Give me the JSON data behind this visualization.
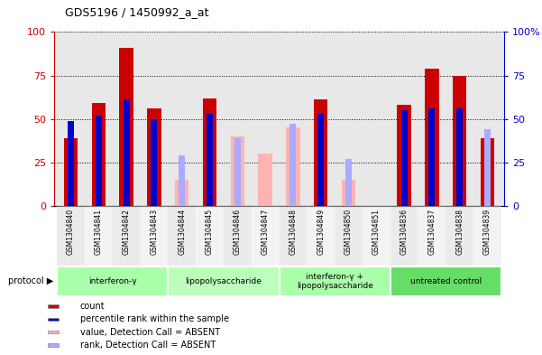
{
  "title": "GDS5196 / 1450992_a_at",
  "samples": [
    "GSM1304840",
    "GSM1304841",
    "GSM1304842",
    "GSM1304843",
    "GSM1304844",
    "GSM1304845",
    "GSM1304846",
    "GSM1304847",
    "GSM1304848",
    "GSM1304849",
    "GSM1304850",
    "GSM1304851",
    "GSM1304836",
    "GSM1304837",
    "GSM1304838",
    "GSM1304839"
  ],
  "count_values": [
    39,
    59,
    91,
    56,
    null,
    62,
    null,
    null,
    null,
    61,
    null,
    null,
    58,
    79,
    75,
    39
  ],
  "count_absent_values": [
    null,
    null,
    null,
    null,
    15,
    null,
    40,
    30,
    45,
    null,
    15,
    null,
    null,
    null,
    null,
    null
  ],
  "rank_values": [
    49,
    52,
    61,
    50,
    null,
    53,
    null,
    null,
    null,
    53,
    null,
    null,
    55,
    56,
    56,
    null
  ],
  "rank_absent_values": [
    null,
    null,
    null,
    null,
    29,
    null,
    39,
    null,
    47,
    null,
    27,
    null,
    null,
    null,
    null,
    44
  ],
  "protocols": [
    {
      "label": "interferon-γ",
      "start": 0,
      "end": 4,
      "color": "#aaffaa"
    },
    {
      "label": "lipopolysaccharide",
      "start": 4,
      "end": 8,
      "color": "#bbffbb"
    },
    {
      "label": "interferon-γ +\nlipopolysaccharide",
      "start": 8,
      "end": 12,
      "color": "#aaffaa"
    },
    {
      "label": "untreated control",
      "start": 12,
      "end": 16,
      "color": "#66dd66"
    }
  ],
  "count_color": "#cc0000",
  "count_absent_color": "#ffb3b3",
  "rank_color": "#0000cc",
  "rank_absent_color": "#aaaaff",
  "ylim": [
    0,
    100
  ],
  "yticks": [
    0,
    25,
    50,
    75,
    100
  ],
  "bar_width": 0.5,
  "plot_bg": "#e8e8e8",
  "legend_items": [
    {
      "label": "count",
      "color": "#cc0000"
    },
    {
      "label": "percentile rank within the sample",
      "color": "#0000cc"
    },
    {
      "label": "value, Detection Call = ABSENT",
      "color": "#ffb3b3"
    },
    {
      "label": "rank, Detection Call = ABSENT",
      "color": "#aaaaff"
    }
  ]
}
